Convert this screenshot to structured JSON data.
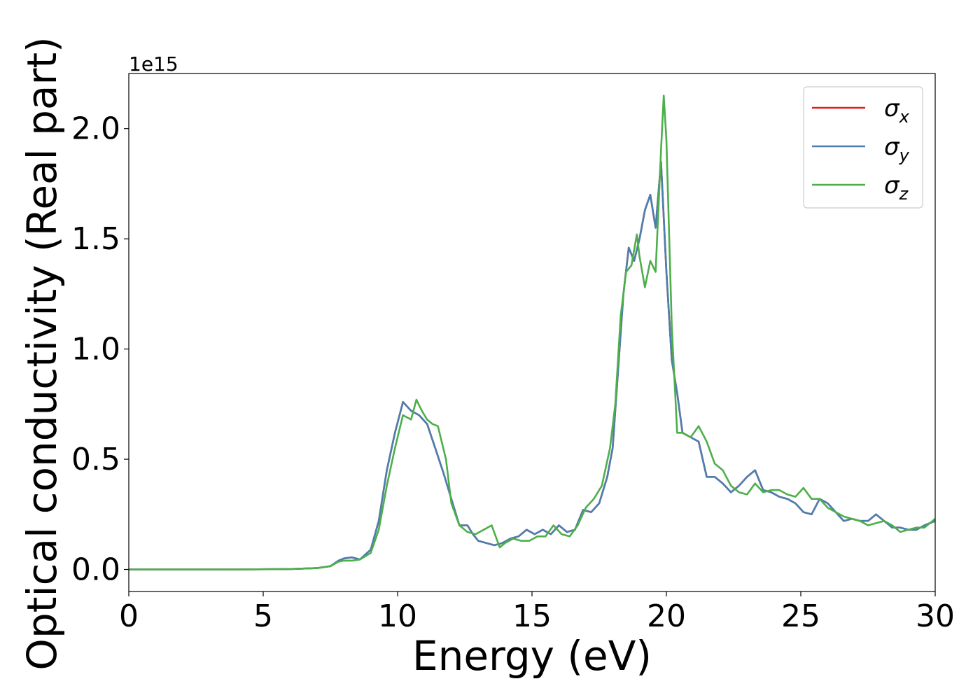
{
  "chart_data": {
    "type": "line",
    "title": "",
    "xlabel": "Energy (eV)",
    "ylabel": "Optical conductivity (Real part)",
    "y_offset_label": "1e15",
    "xlim": [
      0,
      30
    ],
    "ylim": [
      -0.1,
      2.25
    ],
    "x_ticks": [
      0,
      5,
      10,
      15,
      20,
      25,
      30
    ],
    "x_tick_labels": [
      "0",
      "5",
      "10",
      "15",
      "20",
      "25",
      "30"
    ],
    "y_ticks": [
      0.0,
      0.5,
      1.0,
      1.5,
      2.0
    ],
    "y_tick_labels": [
      "0.0",
      "0.5",
      "1.0",
      "1.5",
      "2.0"
    ],
    "grid": false,
    "legend_position": "top-right",
    "colors": {
      "sigma_x": "#e41a1c",
      "sigma_y": "#4a7fb0",
      "sigma_z": "#4daf4a"
    },
    "series": [
      {
        "name": "σx",
        "legend_main": "σ",
        "legend_sub": "x",
        "x": [
          0,
          2,
          4,
          6,
          7,
          7.5,
          7.8,
          8.0,
          8.3,
          8.6,
          9.0,
          9.3,
          9.6,
          9.9,
          10.2,
          10.5,
          10.8,
          11.1,
          11.4,
          11.7,
          12.0,
          12.3,
          12.6,
          12.8,
          13.0,
          13.3,
          13.6,
          13.9,
          14.2,
          14.5,
          14.8,
          15.1,
          15.4,
          15.7,
          16.0,
          16.3,
          16.6,
          16.9,
          17.2,
          17.5,
          17.8,
          18.0,
          18.2,
          18.4,
          18.6,
          18.8,
          19.0,
          19.2,
          19.4,
          19.6,
          19.8,
          20.0,
          20.2,
          20.4,
          20.6,
          20.9,
          21.2,
          21.5,
          21.8,
          22.1,
          22.4,
          22.7,
          23.0,
          23.3,
          23.6,
          23.9,
          24.2,
          24.5,
          24.8,
          25.1,
          25.4,
          25.7,
          26.0,
          26.3,
          26.6,
          26.9,
          27.2,
          27.5,
          27.8,
          28.1,
          28.4,
          28.7,
          29.0,
          29.3,
          29.6,
          30.0
        ],
        "y": [
          0,
          0,
          0,
          0.002,
          0.006,
          0.015,
          0.04,
          0.05,
          0.055,
          0.045,
          0.09,
          0.22,
          0.45,
          0.62,
          0.76,
          0.72,
          0.7,
          0.66,
          0.55,
          0.44,
          0.32,
          0.2,
          0.2,
          0.16,
          0.13,
          0.12,
          0.11,
          0.12,
          0.14,
          0.15,
          0.18,
          0.16,
          0.18,
          0.16,
          0.2,
          0.17,
          0.18,
          0.27,
          0.26,
          0.3,
          0.42,
          0.55,
          0.9,
          1.25,
          1.46,
          1.4,
          1.5,
          1.63,
          1.7,
          1.55,
          1.85,
          1.35,
          0.95,
          0.8,
          0.62,
          0.6,
          0.58,
          0.42,
          0.42,
          0.39,
          0.35,
          0.38,
          0.42,
          0.45,
          0.36,
          0.35,
          0.33,
          0.32,
          0.3,
          0.26,
          0.25,
          0.32,
          0.3,
          0.26,
          0.22,
          0.23,
          0.22,
          0.22,
          0.25,
          0.22,
          0.19,
          0.19,
          0.18,
          0.18,
          0.2,
          0.22
        ]
      },
      {
        "name": "σy",
        "legend_main": "σ",
        "legend_sub": "y",
        "x": [
          0,
          2,
          4,
          6,
          7,
          7.5,
          7.8,
          8.0,
          8.3,
          8.6,
          9.0,
          9.3,
          9.6,
          9.9,
          10.2,
          10.5,
          10.8,
          11.1,
          11.4,
          11.7,
          12.0,
          12.3,
          12.6,
          12.8,
          13.0,
          13.3,
          13.6,
          13.9,
          14.2,
          14.5,
          14.8,
          15.1,
          15.4,
          15.7,
          16.0,
          16.3,
          16.6,
          16.9,
          17.2,
          17.5,
          17.8,
          18.0,
          18.2,
          18.4,
          18.6,
          18.8,
          19.0,
          19.2,
          19.4,
          19.6,
          19.8,
          20.0,
          20.2,
          20.4,
          20.6,
          20.9,
          21.2,
          21.5,
          21.8,
          22.1,
          22.4,
          22.7,
          23.0,
          23.3,
          23.6,
          23.9,
          24.2,
          24.5,
          24.8,
          25.1,
          25.4,
          25.7,
          26.0,
          26.3,
          26.6,
          26.9,
          27.2,
          27.5,
          27.8,
          28.1,
          28.4,
          28.7,
          29.0,
          29.3,
          29.6,
          30.0
        ],
        "y": [
          0,
          0,
          0,
          0.002,
          0.006,
          0.015,
          0.04,
          0.05,
          0.055,
          0.045,
          0.09,
          0.22,
          0.45,
          0.62,
          0.76,
          0.72,
          0.7,
          0.66,
          0.55,
          0.44,
          0.32,
          0.2,
          0.2,
          0.16,
          0.13,
          0.12,
          0.11,
          0.12,
          0.14,
          0.15,
          0.18,
          0.16,
          0.18,
          0.16,
          0.2,
          0.17,
          0.18,
          0.27,
          0.26,
          0.3,
          0.42,
          0.55,
          0.9,
          1.25,
          1.46,
          1.4,
          1.5,
          1.63,
          1.7,
          1.55,
          1.85,
          1.35,
          0.95,
          0.8,
          0.62,
          0.6,
          0.58,
          0.42,
          0.42,
          0.39,
          0.35,
          0.38,
          0.42,
          0.45,
          0.36,
          0.35,
          0.33,
          0.32,
          0.3,
          0.26,
          0.25,
          0.32,
          0.3,
          0.26,
          0.22,
          0.23,
          0.22,
          0.22,
          0.25,
          0.22,
          0.19,
          0.19,
          0.18,
          0.18,
          0.2,
          0.22
        ]
      },
      {
        "name": "σz",
        "legend_main": "σ",
        "legend_sub": "z",
        "x": [
          0,
          2,
          4,
          6,
          7,
          7.5,
          7.8,
          8.0,
          8.3,
          8.6,
          9.0,
          9.3,
          9.6,
          9.9,
          10.2,
          10.5,
          10.7,
          10.9,
          11.1,
          11.3,
          11.5,
          11.8,
          12.0,
          12.3,
          12.6,
          12.9,
          13.2,
          13.5,
          13.8,
          14.0,
          14.3,
          14.6,
          14.9,
          15.2,
          15.5,
          15.8,
          16.1,
          16.4,
          16.7,
          17.0,
          17.3,
          17.6,
          17.9,
          18.1,
          18.3,
          18.5,
          18.7,
          18.9,
          19.0,
          19.2,
          19.4,
          19.6,
          19.8,
          19.9,
          20.0,
          20.2,
          20.4,
          20.6,
          20.9,
          21.2,
          21.5,
          21.8,
          22.1,
          22.4,
          22.7,
          23.0,
          23.3,
          23.6,
          23.9,
          24.2,
          24.5,
          24.8,
          25.1,
          25.4,
          25.7,
          26.0,
          26.3,
          26.6,
          26.9,
          27.2,
          27.5,
          27.8,
          28.1,
          28.4,
          28.7,
          29.0,
          29.3,
          29.6,
          30.0
        ],
        "y": [
          0,
          0,
          0,
          0.002,
          0.006,
          0.015,
          0.035,
          0.04,
          0.04,
          0.045,
          0.075,
          0.18,
          0.38,
          0.55,
          0.7,
          0.68,
          0.77,
          0.72,
          0.68,
          0.66,
          0.65,
          0.5,
          0.3,
          0.2,
          0.17,
          0.16,
          0.18,
          0.2,
          0.1,
          0.12,
          0.14,
          0.13,
          0.13,
          0.15,
          0.15,
          0.2,
          0.16,
          0.15,
          0.2,
          0.28,
          0.32,
          0.38,
          0.55,
          0.75,
          1.15,
          1.35,
          1.38,
          1.52,
          1.42,
          1.28,
          1.4,
          1.35,
          1.9,
          2.15,
          1.95,
          1.1,
          0.62,
          0.62,
          0.6,
          0.65,
          0.58,
          0.48,
          0.45,
          0.38,
          0.35,
          0.34,
          0.39,
          0.35,
          0.36,
          0.36,
          0.34,
          0.33,
          0.37,
          0.32,
          0.32,
          0.28,
          0.26,
          0.24,
          0.23,
          0.22,
          0.2,
          0.21,
          0.22,
          0.2,
          0.17,
          0.18,
          0.19,
          0.19,
          0.23
        ]
      }
    ]
  }
}
